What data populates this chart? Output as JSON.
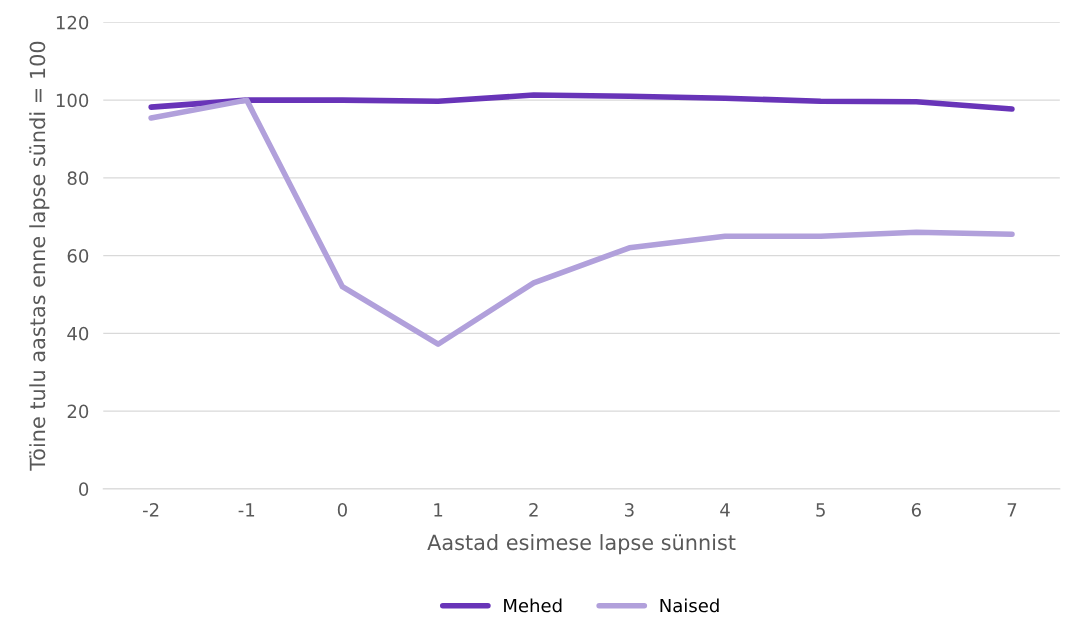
{
  "chart_data": {
    "type": "line",
    "xlabel": "Aastad esimese lapse sünnist",
    "ylabel": "Töine tulu aastas enne lapse sündi = 100",
    "categories": [
      "-2",
      "-1",
      "0",
      "1",
      "2",
      "3",
      "4",
      "5",
      "6",
      "7"
    ],
    "series": [
      {
        "name": "Mehed",
        "color": "#6834b8",
        "values": [
          98.2,
          100,
          100,
          99.7,
          101.3,
          101,
          100.5,
          99.7,
          99.6,
          97.7
        ]
      },
      {
        "name": "Naised",
        "color": "#b1a0db",
        "values": [
          95.4,
          100,
          52,
          37.2,
          53,
          62,
          65,
          65,
          66,
          65.5
        ]
      }
    ],
    "ylim": [
      0,
      120
    ],
    "yticks": [
      0,
      20,
      40,
      60,
      80,
      100,
      120
    ],
    "grid": "y",
    "legend": "bottom",
    "marker": "none",
    "line_style": "solid"
  }
}
